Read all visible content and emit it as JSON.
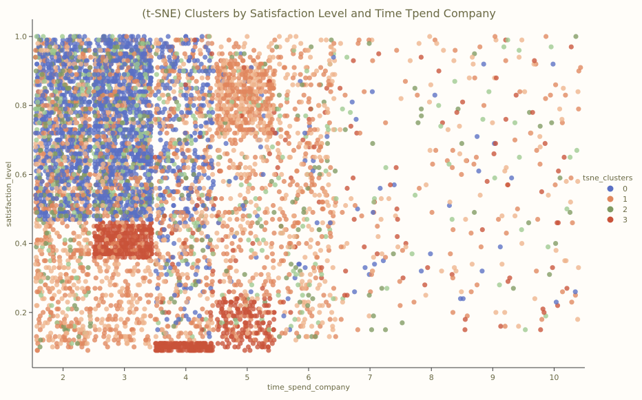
{
  "chart_data": {
    "type": "scatter",
    "title": "(t-SNE) Clusters by Satisfaction Level and Time Tpend Company",
    "xlabel": "time_spend_company",
    "ylabel": "satisfaction_level",
    "xlim": [
      1.5,
      10.5
    ],
    "ylim": [
      0.04,
      1.04
    ],
    "xticks": [
      2,
      3,
      4,
      5,
      6,
      7,
      8,
      9,
      10
    ],
    "yticks": [
      0.2,
      0.4,
      0.6,
      0.8,
      1.0
    ],
    "xtick_labels": [
      "2",
      "3",
      "4",
      "5",
      "6",
      "7",
      "8",
      "9",
      "10"
    ],
    "ytick_labels": [
      "0.2",
      "0.4",
      "0.6",
      "0.8",
      "1.0"
    ],
    "grid": false,
    "legend": {
      "title": "tsne_clusters",
      "placement": "right",
      "entries": [
        {
          "name": "0",
          "color": "#5a6fc4"
        },
        {
          "name": "1",
          "color": "#e0875d"
        },
        {
          "name": "2",
          "color": "#809a62"
        },
        {
          "name": "3",
          "color": "#c9533a"
        }
      ]
    },
    "colors": {
      "title": "#6b6a45",
      "axis_text": "#6b6a45",
      "axis_line": "#3a3a3a",
      "cluster1_light": "#eeb38c",
      "cluster2_light": "#9ec98f"
    },
    "series": [
      {
        "name": "0",
        "regions": [
          {
            "x": [
              1.55,
              2.45
            ],
            "y": [
              0.47,
              1.0
            ],
            "n": 650
          },
          {
            "x": [
              2.5,
              3.45
            ],
            "y": [
              0.47,
              1.0
            ],
            "n": 900
          },
          {
            "x": [
              3.5,
              4.45
            ],
            "y": [
              0.47,
              1.0
            ],
            "n": 260
          },
          {
            "x": [
              3.5,
              4.45
            ],
            "y": [
              0.12,
              0.47
            ],
            "n": 60
          },
          {
            "x": [
              4.5,
              6.45
            ],
            "y": [
              0.15,
              1.0
            ],
            "n": 40
          },
          {
            "x": [
              6.5,
              10.45
            ],
            "y": [
              0.15,
              1.0
            ],
            "n": 28
          }
        ]
      },
      {
        "name": "1",
        "regions": [
          {
            "x": [
              1.55,
              2.45
            ],
            "y": [
              0.09,
              1.0
            ],
            "n": 700
          },
          {
            "x": [
              2.5,
              3.45
            ],
            "y": [
              0.1,
              1.0
            ],
            "n": 620
          },
          {
            "x": [
              3.5,
              4.45
            ],
            "y": [
              0.12,
              1.0
            ],
            "n": 420
          },
          {
            "x": [
              4.5,
              5.45
            ],
            "y": [
              0.72,
              0.93
            ],
            "n": 380
          },
          {
            "x": [
              4.5,
              5.45
            ],
            "y": [
              0.12,
              1.0
            ],
            "n": 320
          },
          {
            "x": [
              5.5,
              6.45
            ],
            "y": [
              0.12,
              1.0
            ],
            "n": 320
          },
          {
            "x": [
              6.5,
              10.45
            ],
            "y": [
              0.14,
              1.0
            ],
            "n": 160
          }
        ]
      },
      {
        "name": "2",
        "regions": [
          {
            "x": [
              1.55,
              2.45
            ],
            "y": [
              0.47,
              1.0
            ],
            "n": 280
          },
          {
            "x": [
              1.55,
              2.45
            ],
            "y": [
              0.1,
              0.47
            ],
            "n": 60
          },
          {
            "x": [
              2.5,
              3.45
            ],
            "y": [
              0.47,
              1.0
            ],
            "n": 320
          },
          {
            "x": [
              3.5,
              4.45
            ],
            "y": [
              0.12,
              1.0
            ],
            "n": 120
          },
          {
            "x": [
              4.5,
              6.45
            ],
            "y": [
              0.12,
              1.0
            ],
            "n": 140
          },
          {
            "x": [
              6.5,
              10.45
            ],
            "y": [
              0.14,
              1.0
            ],
            "n": 60
          }
        ]
      },
      {
        "name": "3",
        "regions": [
          {
            "x": [
              2.5,
              3.45
            ],
            "y": [
              0.36,
              0.46
            ],
            "n": 360
          },
          {
            "x": [
              3.5,
              4.45
            ],
            "y": [
              0.09,
              0.11
            ],
            "n": 180
          },
          {
            "x": [
              4.5,
              5.45
            ],
            "y": [
              0.09,
              0.24
            ],
            "n": 150
          },
          {
            "x": [
              3.5,
              6.45
            ],
            "y": [
              0.12,
              1.0
            ],
            "n": 80
          },
          {
            "x": [
              6.5,
              10.45
            ],
            "y": [
              0.14,
              1.0
            ],
            "n": 60
          }
        ]
      }
    ]
  }
}
